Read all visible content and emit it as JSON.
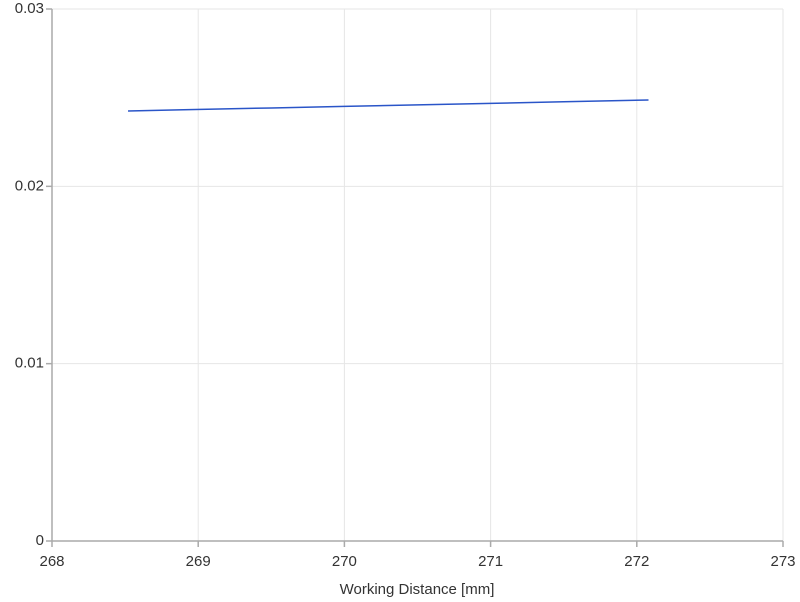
{
  "chart_data": {
    "type": "line",
    "x_label": "Working Distance [mm]",
    "x": [
      268.52,
      268.9,
      269.5,
      270.0,
      270.5,
      271.0,
      271.5,
      272.08
    ],
    "series": [
      {
        "color": "#2a55c8",
        "values": [
          0.02425,
          0.02432,
          0.02442,
          0.02451,
          0.02459,
          0.02468,
          0.02477,
          0.02487
        ]
      }
    ],
    "xlim": [
      268,
      273
    ],
    "xticks": [
      268,
      269,
      270,
      271,
      272,
      273
    ],
    "ylim": [
      0,
      0.03
    ],
    "yticks": [
      0,
      0.01,
      0.02,
      0.03
    ],
    "grid": true
  }
}
